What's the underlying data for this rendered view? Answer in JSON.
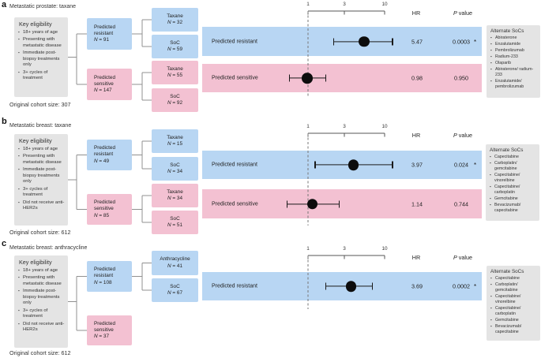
{
  "figure": {
    "panels": [
      {
        "letter": "a",
        "title": "Metastatic prostate: taxane",
        "key_eligibility": {
          "title": "Key eligibility",
          "items": [
            "18+ years of age",
            "Presenting with metastatic disease",
            "Immediate post-biopsy treatments only",
            "3+ cycles of treatment"
          ]
        },
        "cohort_note": "Original cohort size: 307",
        "flow": {
          "resistant": {
            "label": "Predicted resistant",
            "n": "N = 91"
          },
          "sensitive": {
            "label": "Predicted sensitive",
            "n": "N = 147"
          },
          "resistant_arms": [
            {
              "label": "Taxane",
              "n": "N = 32"
            },
            {
              "label": "SoC",
              "n": "N = 59"
            }
          ],
          "sensitive_arms": [
            {
              "label": "Taxane",
              "n": "N = 55"
            },
            {
              "label": "SoC",
              "n": "N = 92"
            }
          ]
        },
        "alternate_socs": {
          "title": "Alternate SoCs",
          "items": [
            "Abiraterone",
            "Enzalutamide",
            "Pembrolizumab",
            "Radium-233",
            "Olaparib",
            "Abiraterone/ radium-233",
            "Enzalutamide/ pembrolizumab"
          ]
        }
      },
      {
        "letter": "b",
        "title": "Metastatic breast: taxane",
        "key_eligibility": {
          "title": "Key eligibility",
          "items": [
            "18+ years of age",
            "Presenting with metastatic disease",
            "Immediate post-biopsy treatments only",
            "3+ cycles of treatment",
            "Did not receive anti-HER2s"
          ]
        },
        "cohort_note": "Original cohort size: 612",
        "flow": {
          "resistant": {
            "label": "Predicted resistant",
            "n": "N = 49"
          },
          "sensitive": {
            "label": "Predicted sensitive",
            "n": "N = 85"
          },
          "resistant_arms": [
            {
              "label": "Taxane",
              "n": "N = 15"
            },
            {
              "label": "SoC",
              "n": "N = 34"
            }
          ],
          "sensitive_arms": [
            {
              "label": "Taxane",
              "n": "N = 34"
            },
            {
              "label": "SoC",
              "n": "N = 51"
            }
          ]
        },
        "alternate_socs": {
          "title": "Alternate SoCs",
          "items": [
            "Capecitabine",
            "Carboplatin/ gemcitabine",
            "Capecitabine/ vinorelbine",
            "Capecitabine/ carboplatin",
            "Gemcitabine",
            "Bevacizumab/ capecitabine"
          ]
        }
      },
      {
        "letter": "c",
        "title": "Metastatic breast: anthracycline",
        "key_eligibility": {
          "title": "Key eligibility",
          "items": [
            "18+ years of age",
            "Presenting with metastatic disease",
            "Immediate post-biopsy treatments only",
            "3+ cycles of treatment",
            "Did not receive anti-HER2s"
          ]
        },
        "cohort_note": "Original cohort size: 612",
        "flow": {
          "resistant": {
            "label": "Predicted resistant",
            "n": "N = 108"
          },
          "sensitive": {
            "label": "Predicted sensitive",
            "n": "N = 37"
          },
          "resistant_arms": [
            {
              "label": "Anthracycline",
              "n": "N = 41"
            },
            {
              "label": "SoC",
              "n": "N = 67"
            }
          ],
          "sensitive_arms": []
        },
        "alternate_socs": {
          "title": "Alternate SoCs",
          "items": [
            "Capecitabine",
            "Carboplatin/ gemcitabine",
            "Capecitabine/ vinorelbine",
            "Capecitabine/ carboplatin",
            "Gemcitabine",
            "Bevacizumab/ capecitabine"
          ]
        }
      }
    ]
  },
  "chart_data": [
    {
      "type": "forest",
      "panel": "a",
      "title": "Metastatic prostate: taxane",
      "x_axis": {
        "scale": "log",
        "ticks": [
          1,
          3,
          10
        ],
        "range": [
          1,
          10
        ],
        "reference_line": 1
      },
      "columns": [
        "HR",
        "P value"
      ],
      "rows": [
        {
          "label": "Predicted resistant",
          "hr": 5.47,
          "ci": [
            2.2,
            13.0
          ],
          "p_value": "0.0003",
          "sig": "*",
          "tone": "blue"
        },
        {
          "label": "Predicted sensitive",
          "hr": 0.98,
          "ci": [
            0.57,
            1.7
          ],
          "p_value": "0.950",
          "sig": "",
          "tone": "pink"
        }
      ]
    },
    {
      "type": "forest",
      "panel": "b",
      "title": "Metastatic breast: taxane",
      "x_axis": {
        "scale": "log",
        "ticks": [
          1,
          3,
          10
        ],
        "range": [
          1,
          10
        ],
        "reference_line": 1
      },
      "columns": [
        "HR",
        "P value"
      ],
      "rows": [
        {
          "label": "Predicted resistant",
          "hr": 3.97,
          "ci": [
            1.24,
            13.0
          ],
          "p_value": "0.024",
          "sig": "*",
          "tone": "blue"
        },
        {
          "label": "Predicted sensitive",
          "hr": 1.14,
          "ci": [
            0.53,
            2.6
          ],
          "p_value": "0.744",
          "sig": "",
          "tone": "pink"
        }
      ]
    },
    {
      "type": "forest",
      "panel": "c",
      "title": "Metastatic breast: anthracycline",
      "x_axis": {
        "scale": "log",
        "ticks": [
          1,
          3,
          10
        ],
        "range": [
          1,
          10
        ],
        "reference_line": 1
      },
      "columns": [
        "HR",
        "P value"
      ],
      "rows": [
        {
          "label": "Predicted resistant",
          "hr": 3.69,
          "ci": [
            1.7,
            7.0
          ],
          "p_value": "0.0002",
          "sig": "*",
          "tone": "blue"
        }
      ]
    }
  ],
  "colors": {
    "resistant_blue": "#b8d6f3",
    "sensitive_pink": "#f3c1d2",
    "panel_gray": "#e4e4e4"
  }
}
